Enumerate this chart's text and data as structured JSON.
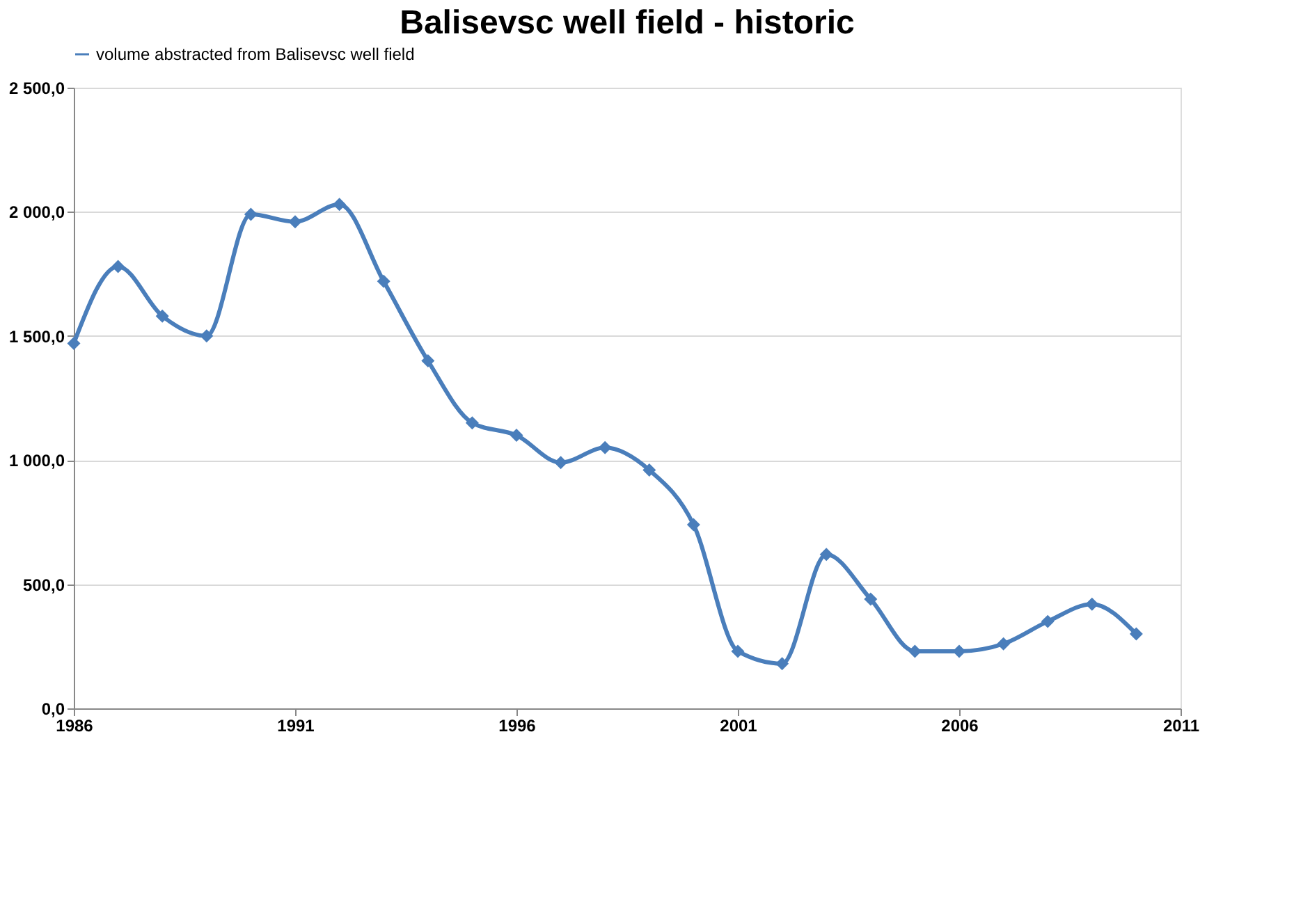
{
  "chart_data": {
    "type": "line",
    "title": "Balisevsc well field - historic",
    "x": [
      1986,
      1987,
      1988,
      1989,
      1990,
      1991,
      1992,
      1993,
      1994,
      1995,
      1996,
      1997,
      1998,
      1999,
      2000,
      2001,
      2002,
      2003,
      2004,
      2005,
      2006,
      2007,
      2008,
      2009,
      2010
    ],
    "series": [
      {
        "name": "volume abstracted from Balisevsc well field",
        "color": "#4a7ebb",
        "values": [
          1470,
          1780,
          1580,
          1500,
          1990,
          1960,
          2030,
          1720,
          1400,
          1150,
          1100,
          990,
          1050,
          960,
          740,
          230,
          180,
          620,
          440,
          230,
          230,
          260,
          350,
          420,
          300
        ]
      }
    ],
    "xlim": [
      1986,
      2011
    ],
    "xticks": [
      1986,
      1991,
      1996,
      2001,
      2006,
      2011
    ],
    "ylim": [
      0,
      2500
    ],
    "yticks": [
      {
        "value": 0,
        "label": "0,0"
      },
      {
        "value": 500,
        "label": "500,0"
      },
      {
        "value": 1000,
        "label": "1 000,0"
      },
      {
        "value": 1500,
        "label": "1 500,0"
      },
      {
        "value": 2000,
        "label": "2 000,0"
      },
      {
        "value": 2500,
        "label": "2 500,0"
      }
    ],
    "grid": "y",
    "legend": "top",
    "marker": "diamond",
    "line_style": "solid"
  }
}
